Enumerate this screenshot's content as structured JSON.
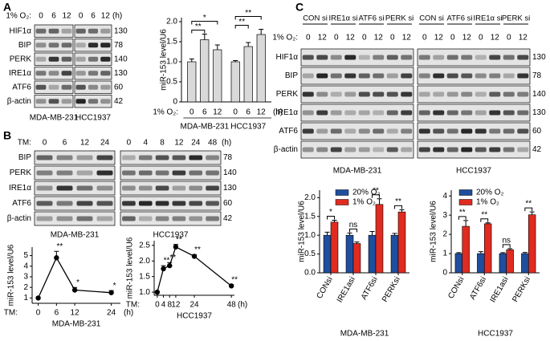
{
  "panel_labels": [
    "A",
    "B",
    "C"
  ],
  "blots": [
    {
      "header_label": "1% O₂:",
      "lanes": [
        [
          "0",
          "6",
          "12"
        ],
        [
          "0",
          "6",
          "12"
        ]
      ],
      "unit": "(h)",
      "rows": [
        {
          "name": "HIF1α",
          "kda": 130
        },
        {
          "name": "BIP",
          "kda": 78
        },
        {
          "name": "PERK",
          "kda": 140
        },
        {
          "name": "IRE1α",
          "kda": 130
        },
        {
          "name": "ATF6",
          "kda": 60
        },
        {
          "name": "β-actin",
          "kda": 42
        }
      ],
      "cells": [
        "MDA-MB-231",
        "HCC1937"
      ]
    },
    {
      "header_label": "TM:",
      "lanes": [
        [
          "0",
          "6",
          "12",
          "24"
        ],
        [
          "0",
          "4",
          "8",
          "12",
          "24",
          "48"
        ]
      ],
      "unit": "(h)",
      "rows": [
        {
          "name": "BIP",
          "kda": 78
        },
        {
          "name": "PERK",
          "kda": 140
        },
        {
          "name": "IRE1α",
          "kda": 130
        },
        {
          "name": "ATF6",
          "kda": 60
        },
        {
          "name": "β-actin",
          "kda": 42
        }
      ],
      "cells": [
        "MDA-MB-231",
        "HCC1937"
      ]
    },
    {
      "header_label": "1% O₂:",
      "groups": [
        [
          "CON si",
          "IRE1α si",
          "ATF6 si",
          "PERK si"
        ],
        [
          "CON si",
          "ATF6 si",
          "IRE1α si",
          "PERK si"
        ]
      ],
      "lanes": [
        [
          "0",
          "12",
          "0",
          "12",
          "0",
          "12",
          "0",
          "12"
        ],
        [
          "0",
          "12",
          "0",
          "12",
          "0",
          "12",
          "0",
          "12"
        ]
      ],
      "rows": [
        {
          "name": "HIF1α",
          "kda": 130
        },
        {
          "name": "BIP",
          "kda": 78
        },
        {
          "name": "PERK",
          "kda": 140
        },
        {
          "name": "IRE1α",
          "kda": 130
        },
        {
          "name": "ATF6",
          "kda": 60
        },
        {
          "name": "β-actin",
          "kda": 42
        }
      ],
      "cells": [
        "MDA-MB-231",
        "HCC1937"
      ]
    }
  ],
  "chart_data": [
    {
      "type": "bar",
      "ylabel": "miR-153 level/U6",
      "x_prefix": "1% O₂:",
      "x_unit": "(h)",
      "categories": [
        "0",
        "6",
        "12",
        "0",
        "6",
        "12"
      ],
      "values": [
        1.0,
        1.55,
        1.3,
        1.0,
        1.38,
        1.68
      ],
      "errors": [
        0.07,
        0.14,
        0.12,
        0.03,
        0.1,
        0.13
      ],
      "significance": [
        null,
        "**",
        "*",
        null,
        "**",
        "**"
      ],
      "group_labels": [
        "MDA-MB-231",
        "HCC1937"
      ],
      "color": "#d9d9d9",
      "ylim": [
        0,
        2.1
      ],
      "yticks": [
        0,
        0.5,
        {
          "value": 1,
          "label": "1.0"
        },
        1.5,
        {
          "value": 2,
          "label": "2.0"
        }
      ]
    },
    {
      "type": "line",
      "ylabel": "miR-153 level/U6",
      "x_prefix": "TM:",
      "x_unit": "(h)",
      "x": [
        0,
        6,
        12,
        24
      ],
      "values": [
        1.0,
        4.8,
        1.75,
        1.5
      ],
      "errors": [
        0.05,
        0.6,
        0.25,
        0.2
      ],
      "significance": [
        null,
        "**",
        "*",
        "*"
      ],
      "xlabel": "MDA-MB-231",
      "color": "#000000",
      "xlim": [
        -2,
        27
      ],
      "xticks": [
        0,
        6,
        12,
        24
      ],
      "ylim": [
        0.5,
        5.8
      ],
      "yticks": [
        1,
        2,
        3,
        4,
        5
      ]
    },
    {
      "type": "line",
      "ylabel": "miR-153 level/U6",
      "x_prefix": "TM:",
      "x_unit": "(h)",
      "x": [
        0,
        4,
        8,
        12,
        24,
        48
      ],
      "values": [
        1.0,
        1.75,
        1.85,
        2.45,
        2.15,
        1.2
      ],
      "errors": [
        0.02,
        0.1,
        0.1,
        0.08,
        0.05,
        0.04
      ],
      "significance": [
        null,
        "**",
        "**",
        "**",
        "**",
        "**"
      ],
      "xlabel": "HCC1937",
      "color": "#000000",
      "xlim": [
        -2,
        50
      ],
      "xticks": [
        0,
        4,
        8,
        12,
        24,
        48
      ],
      "ylim": [
        0.9,
        2.65
      ],
      "yticks": [
        {
          "value": 1,
          "label": "1.0"
        },
        1.5,
        {
          "value": 2,
          "label": "2.0"
        },
        2.5
      ]
    },
    {
      "type": "bar",
      "ylabel": "miR-153 level/U6",
      "categories": [
        "CONsi",
        "IRE1asi",
        "ATF6si",
        "PERKsi"
      ],
      "series": [
        {
          "name": "20% O₂",
          "color": "#1f4e9e",
          "values": [
            1.0,
            1.0,
            1.0,
            1.0
          ],
          "errors": [
            0.08,
            0.06,
            0.1,
            0.05
          ]
        },
        {
          "name": "1% O₂",
          "color": "#e02b20",
          "values": [
            1.35,
            0.78,
            1.82,
            1.62
          ],
          "errors": [
            0.05,
            0.04,
            0.15,
            0.06
          ]
        }
      ],
      "significance": [
        "*",
        "ns",
        "**",
        "**"
      ],
      "xlabel": "MDA-MB-231",
      "ylim": [
        0,
        2.2
      ],
      "yticks": [
        {
          "value": 0,
          "label": "0.0"
        },
        0.5,
        {
          "value": 1,
          "label": "1.0"
        },
        1.5,
        {
          "value": 2,
          "label": "2.0"
        }
      ]
    },
    {
      "type": "bar",
      "ylabel": "miR-153 level/U6",
      "categories": [
        "CONsi",
        "ATF6si",
        "IRE1asi",
        "PERKsi"
      ],
      "series": [
        {
          "name": "20% O₂",
          "color": "#1f4e9e",
          "values": [
            1.0,
            1.0,
            1.0,
            1.0
          ],
          "errors": [
            0.05,
            0.1,
            0.05,
            0.06
          ]
        },
        {
          "name": "1% O₂",
          "color": "#e02b20",
          "values": [
            2.42,
            2.55,
            1.2,
            3.02
          ],
          "errors": [
            0.3,
            0.05,
            0.06,
            0.15
          ]
        }
      ],
      "significance": [
        "**",
        "**",
        "ns",
        "**"
      ],
      "xlabel": "HCC1937",
      "ylim": [
        0,
        4.3
      ],
      "yticks": [
        0,
        1,
        2,
        3,
        4
      ]
    }
  ]
}
